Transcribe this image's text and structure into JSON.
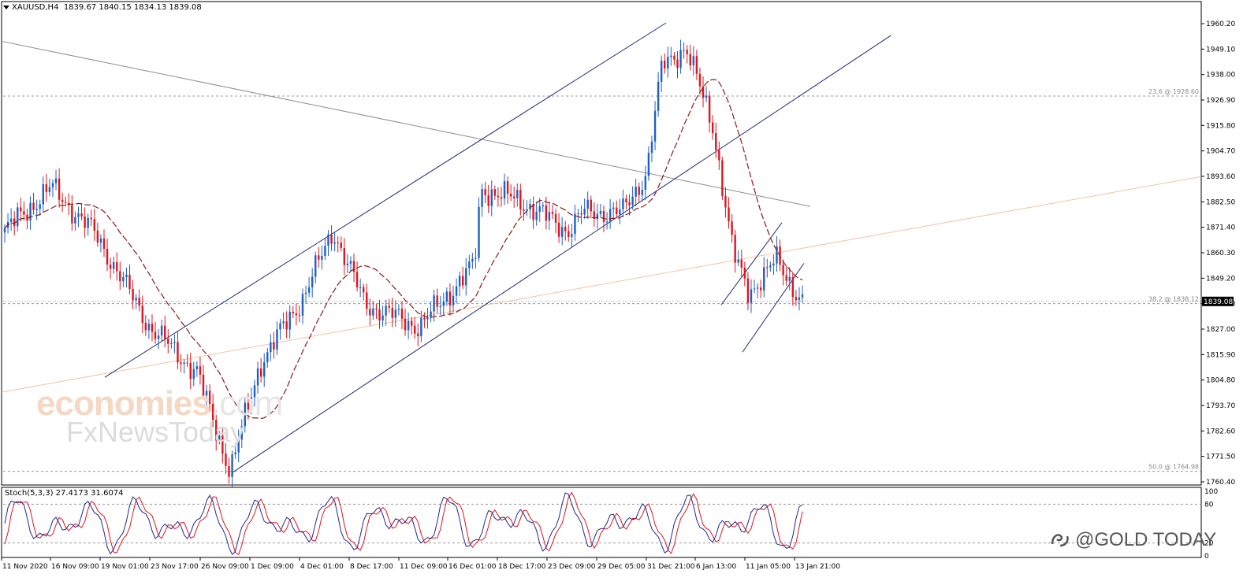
{
  "header": {
    "symbol": "XAUUSD,H4",
    "ohlc": "1839.67 1840.15 1834.13 1839.08"
  },
  "stochastic": {
    "label": "Stoch(5,3,3) 27.4173 31.6074",
    "levels": [
      "100",
      "80",
      "20",
      "0"
    ]
  },
  "watermarks": {
    "economies": "economies",
    "dotcom": ".com",
    "fxnews": "FxNewsToday",
    "gold": "@GOLD TODAY"
  },
  "colors": {
    "bull": "#1f5fc7",
    "bear": "#e0141c",
    "ma": "#8b1a1a",
    "channel": "#1f2a7a",
    "fib": "#9a9a9a",
    "stoch_main": "#1f2a8a",
    "stoch_signal": "#e0141c"
  },
  "chart_data": {
    "type": "candlestick",
    "instrument": "XAUUSD",
    "timeframe": "H4",
    "ylim": [
      1760.4,
      1960.2
    ],
    "y_ticks": [
      "1960.20",
      "1949.10",
      "1938.00",
      "1926.90",
      "1915.80",
      "1904.70",
      "1893.60",
      "1882.50",
      "1871.40",
      "1860.30",
      "1849.20",
      "1838.10",
      "1827.00",
      "1815.90",
      "1804.80",
      "1793.70",
      "1782.60",
      "1771.50",
      "1760.40"
    ],
    "x_ticks": [
      "11 Nov 2020",
      "16 Nov 09:00",
      "19 Nov 01:00",
      "23 Nov 17:00",
      "26 Nov 09:00",
      "1 Dec 09:00",
      "4 Dec 01:00",
      "8 Dec 17:00",
      "11 Dec 09:00",
      "16 Dec 01:00",
      "18 Dec 17:00",
      "23 Dec 09:00",
      "29 Dec 05:00",
      "31 Dec 21:00",
      "6 Jan 13:00",
      "11 Jan 05:00",
      "13 Jan 21:00"
    ],
    "current_price": "1839.08",
    "fib_levels": [
      {
        "label": "23.6 @ 1928.60",
        "price": 1928.6
      },
      {
        "label": "38.2 @ 1838.12",
        "price": 1838.12
      },
      {
        "label": "50.0 @ 1764.98",
        "price": 1764.98
      }
    ],
    "key_closes": [
      {
        "x": "11 Nov 2020",
        "close": 1868
      },
      {
        "x": "16 Nov 09:00",
        "close": 1889
      },
      {
        "x": "19 Nov 01:00",
        "close": 1868
      },
      {
        "x": "23 Nov 17:00",
        "close": 1828
      },
      {
        "x": "26 Nov 09:00",
        "close": 1808
      },
      {
        "x": "30 Nov",
        "close": 1765
      },
      {
        "x": "1 Dec 09:00",
        "close": 1812
      },
      {
        "x": "4 Dec 01:00",
        "close": 1840
      },
      {
        "x": "7 Dec",
        "close": 1870
      },
      {
        "x": "8 Dec 17:00",
        "close": 1838
      },
      {
        "x": "11 Dec 09:00",
        "close": 1828
      },
      {
        "x": "16 Dec 01:00",
        "close": 1855
      },
      {
        "x": "17 Dec",
        "close": 1888
      },
      {
        "x": "18 Dec 17:00",
        "close": 1883
      },
      {
        "x": "23 Dec 09:00",
        "close": 1870
      },
      {
        "x": "24 Dec",
        "close": 1878
      },
      {
        "x": "29 Dec 05:00",
        "close": 1878
      },
      {
        "x": "31 Dec 21:00",
        "close": 1895
      },
      {
        "x": "4 Jan",
        "close": 1942
      },
      {
        "x": "5 Jan",
        "close": 1950
      },
      {
        "x": "6 Jan 13:00",
        "close": 1915
      },
      {
        "x": "8 Jan",
        "close": 1860
      },
      {
        "x": "11 Jan 05:00",
        "close": 1843
      },
      {
        "x": "12 Jan",
        "close": 1857
      },
      {
        "x": "13 Jan 21:00",
        "close": 1839
      }
    ],
    "stochastic_levels": [
      20,
      80
    ]
  }
}
